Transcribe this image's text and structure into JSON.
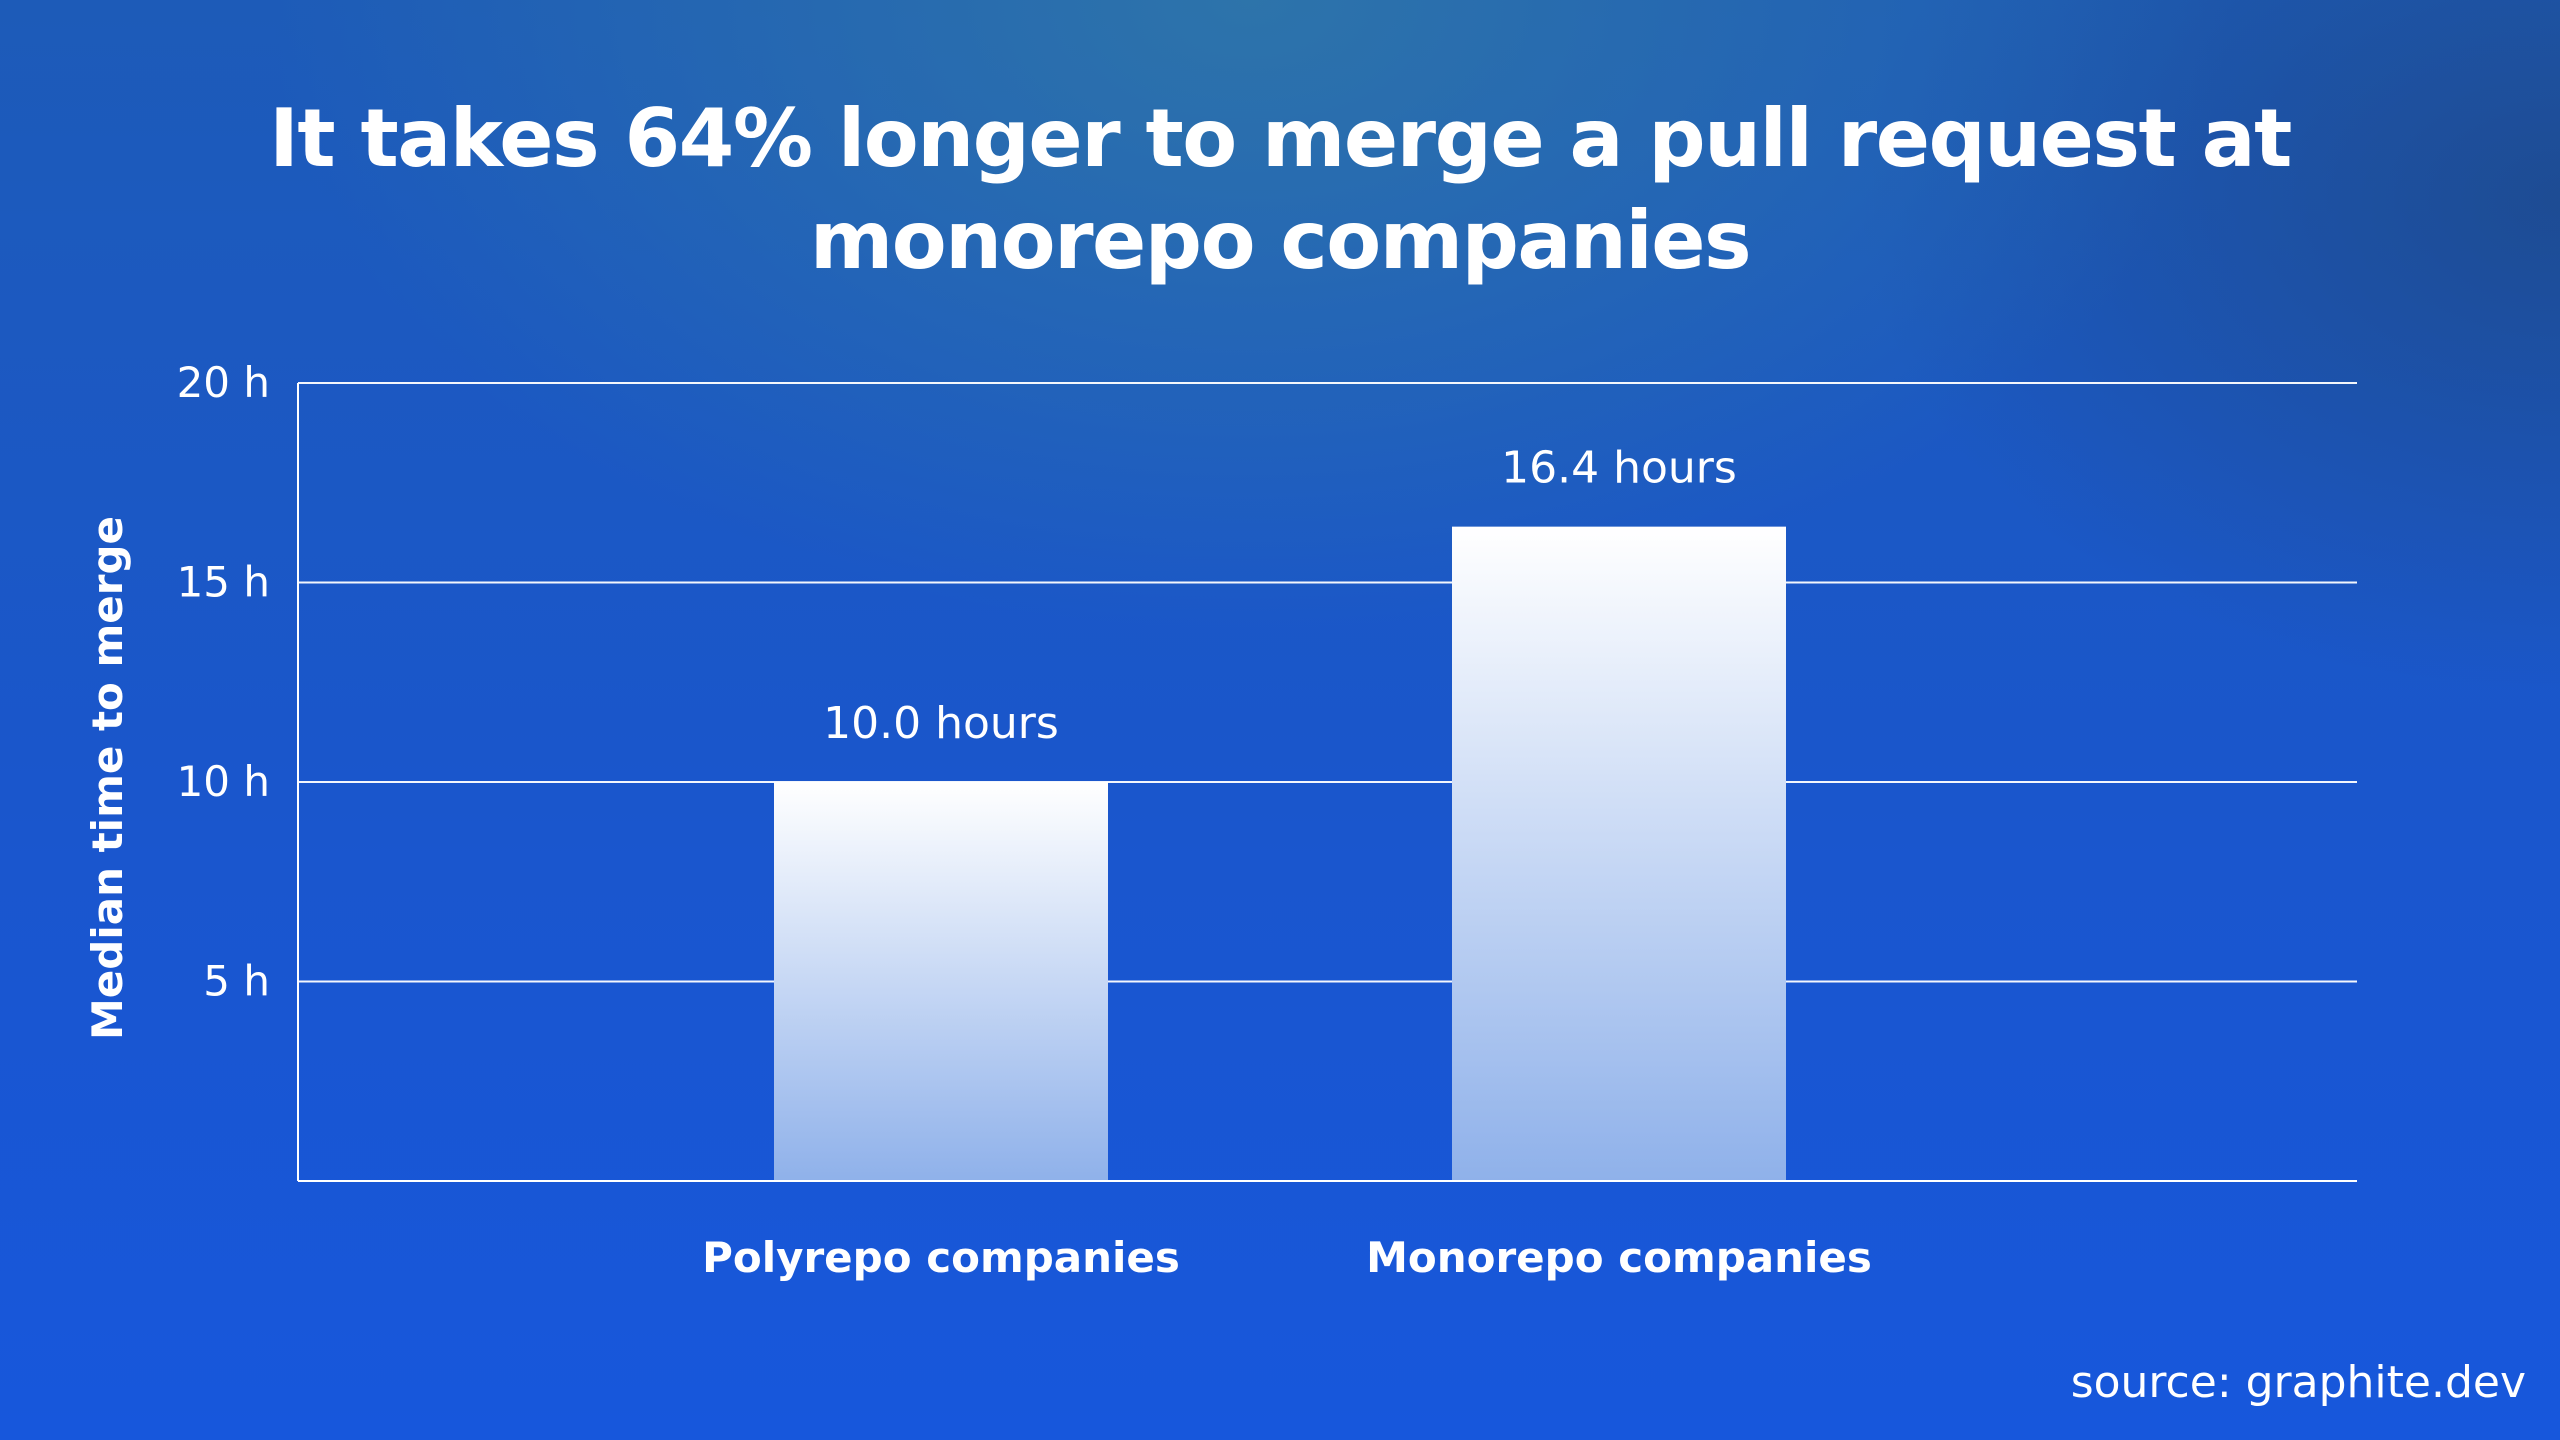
{
  "chart_data": {
    "type": "bar",
    "title": "It takes 64% longer to merge a pull request at monorepo companies",
    "ylabel": "Median time to merge",
    "xlabel": "",
    "categories": [
      "Polyrepo companies",
      "Monorepo companies"
    ],
    "values": [
      10.0,
      16.4
    ],
    "data_labels": [
      "10.0 hours",
      "16.4 hours"
    ],
    "ylim": [
      0,
      20
    ],
    "yticks": [
      5,
      10,
      15,
      20
    ],
    "ytick_labels": [
      "5 h",
      "10 h",
      "15 h",
      "20 h"
    ],
    "grid": true,
    "legend": "none",
    "bar_gradient": [
      "#ffffff",
      "#8fb1ea"
    ]
  },
  "source": "source: graphite.dev"
}
